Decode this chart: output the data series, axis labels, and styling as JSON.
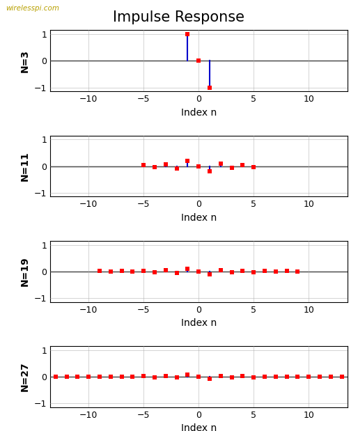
{
  "title": "Impulse Response",
  "watermark": "wirelesspi.com",
  "filter_lengths": [
    3,
    11,
    19,
    27
  ],
  "xlabel": "Index n",
  "xlim": [
    -13.5,
    13.5
  ],
  "ylim": [
    -1.15,
    1.15
  ],
  "yticks": [
    -1,
    0,
    1
  ],
  "xticks": [
    -10,
    -5,
    0,
    5,
    10
  ],
  "marker_color": "#ff0000",
  "stem_color": "#0000cc",
  "marker_size": 5,
  "line_color": "#000000",
  "background": "#ffffff"
}
